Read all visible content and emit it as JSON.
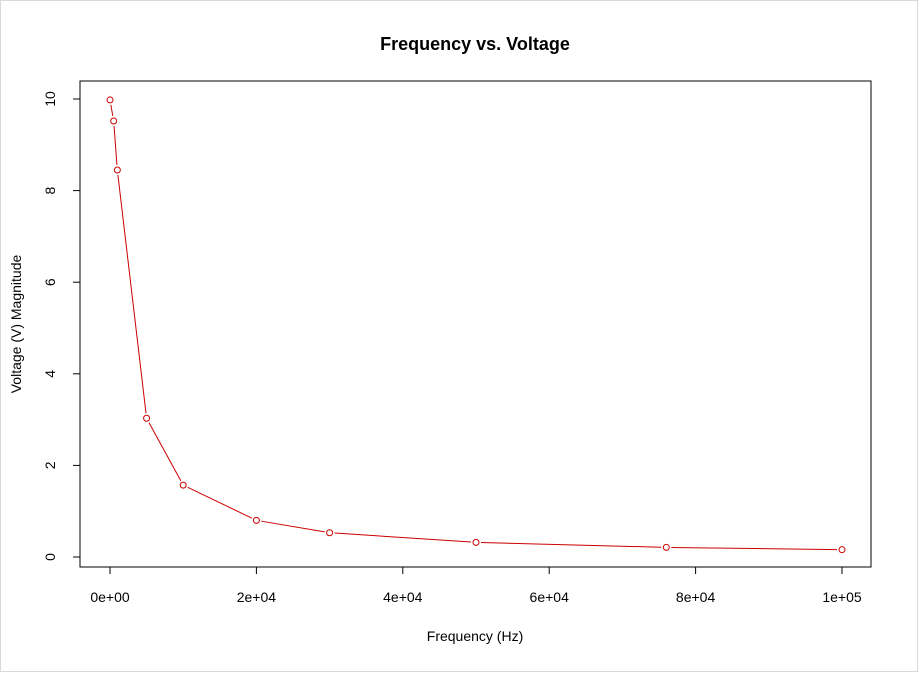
{
  "chart_data": {
    "type": "line",
    "title": "Frequency vs. Voltage",
    "xlabel": "Frequency (Hz)",
    "ylabel": "Voltage (V) Magnitude",
    "xlim": [
      0,
      100000
    ],
    "ylim": [
      0,
      10
    ],
    "grid": false,
    "legend": "none",
    "x_ticks": [
      0,
      20000,
      40000,
      60000,
      80000,
      100000
    ],
    "x_tick_labels": [
      "0e+00",
      "2e+04",
      "4e+04",
      "6e+04",
      "8e+04",
      "1e+05"
    ],
    "y_ticks": [
      0,
      2,
      4,
      6,
      8,
      10
    ],
    "y_tick_labels": [
      "0",
      "2",
      "4",
      "6",
      "8",
      "10"
    ],
    "color": "#cc0000",
    "series": [
      {
        "x": [
          0,
          500,
          1000,
          5000,
          10000,
          20000,
          30000,
          50000,
          76000,
          100000
        ],
        "y": [
          9.98,
          9.52,
          8.45,
          3.03,
          1.57,
          0.8,
          0.53,
          0.32,
          0.21,
          0.16
        ]
      }
    ]
  }
}
